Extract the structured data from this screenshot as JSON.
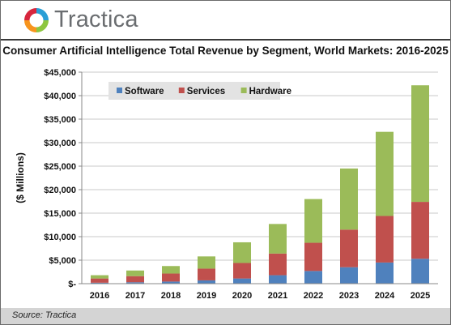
{
  "brand": {
    "name": "Tractica"
  },
  "source": "Source: Tractica",
  "colors": {
    "software": "#4f81bd",
    "services": "#c0504d",
    "hardware": "#9bbb59"
  },
  "chart_data": {
    "type": "bar",
    "stacked": true,
    "title": "Consumer Artificial Intelligence Total Revenue by Segment, World Markets: 2016-2025",
    "ylabel": "($ Millions)",
    "xlabel": "",
    "categories": [
      "2016",
      "2017",
      "2018",
      "2019",
      "2020",
      "2021",
      "2022",
      "2023",
      "2024",
      "2025"
    ],
    "series": [
      {
        "name": "Software",
        "values": [
          200,
          300,
          450,
          700,
          1100,
          1800,
          2700,
          3500,
          4500,
          5300
        ]
      },
      {
        "name": "Services",
        "values": [
          900,
          1300,
          1700,
          2500,
          3300,
          4600,
          6000,
          8000,
          9900,
          12100
        ]
      },
      {
        "name": "Hardware",
        "values": [
          700,
          1200,
          1600,
          2600,
          4400,
          6300,
          9300,
          13000,
          17900,
          24800
        ]
      }
    ],
    "ylim": [
      0,
      45000
    ],
    "yticks": [
      0,
      5000,
      10000,
      15000,
      20000,
      25000,
      30000,
      35000,
      40000,
      45000
    ],
    "ytick_labels": [
      "$-",
      "$5,000",
      "$10,000",
      "$15,000",
      "$20,000",
      "$25,000",
      "$30,000",
      "$35,000",
      "$40,000",
      "$45,000"
    ],
    "grid": true,
    "legend_position": "top-left"
  }
}
